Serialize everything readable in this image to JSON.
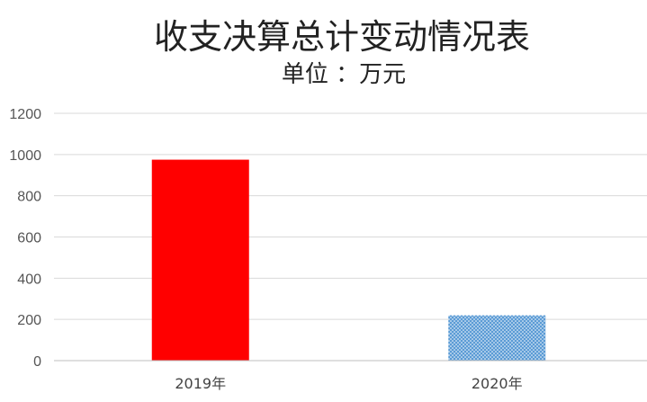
{
  "chart_data": {
    "type": "bar",
    "title": "收支决算总计变动情况表",
    "subtitle": "单位 ：万元",
    "categories": [
      "2019年",
      "2020年"
    ],
    "values": [
      975,
      220
    ],
    "ylim": [
      0,
      1200
    ],
    "yticks": [
      "0",
      "200",
      "400",
      "600",
      "800",
      "1000",
      "1200"
    ],
    "grid": true,
    "bar_colors": [
      "#ff0000",
      "#5b9bd5"
    ],
    "bar_patterns": [
      "solid",
      "dotted"
    ]
  }
}
